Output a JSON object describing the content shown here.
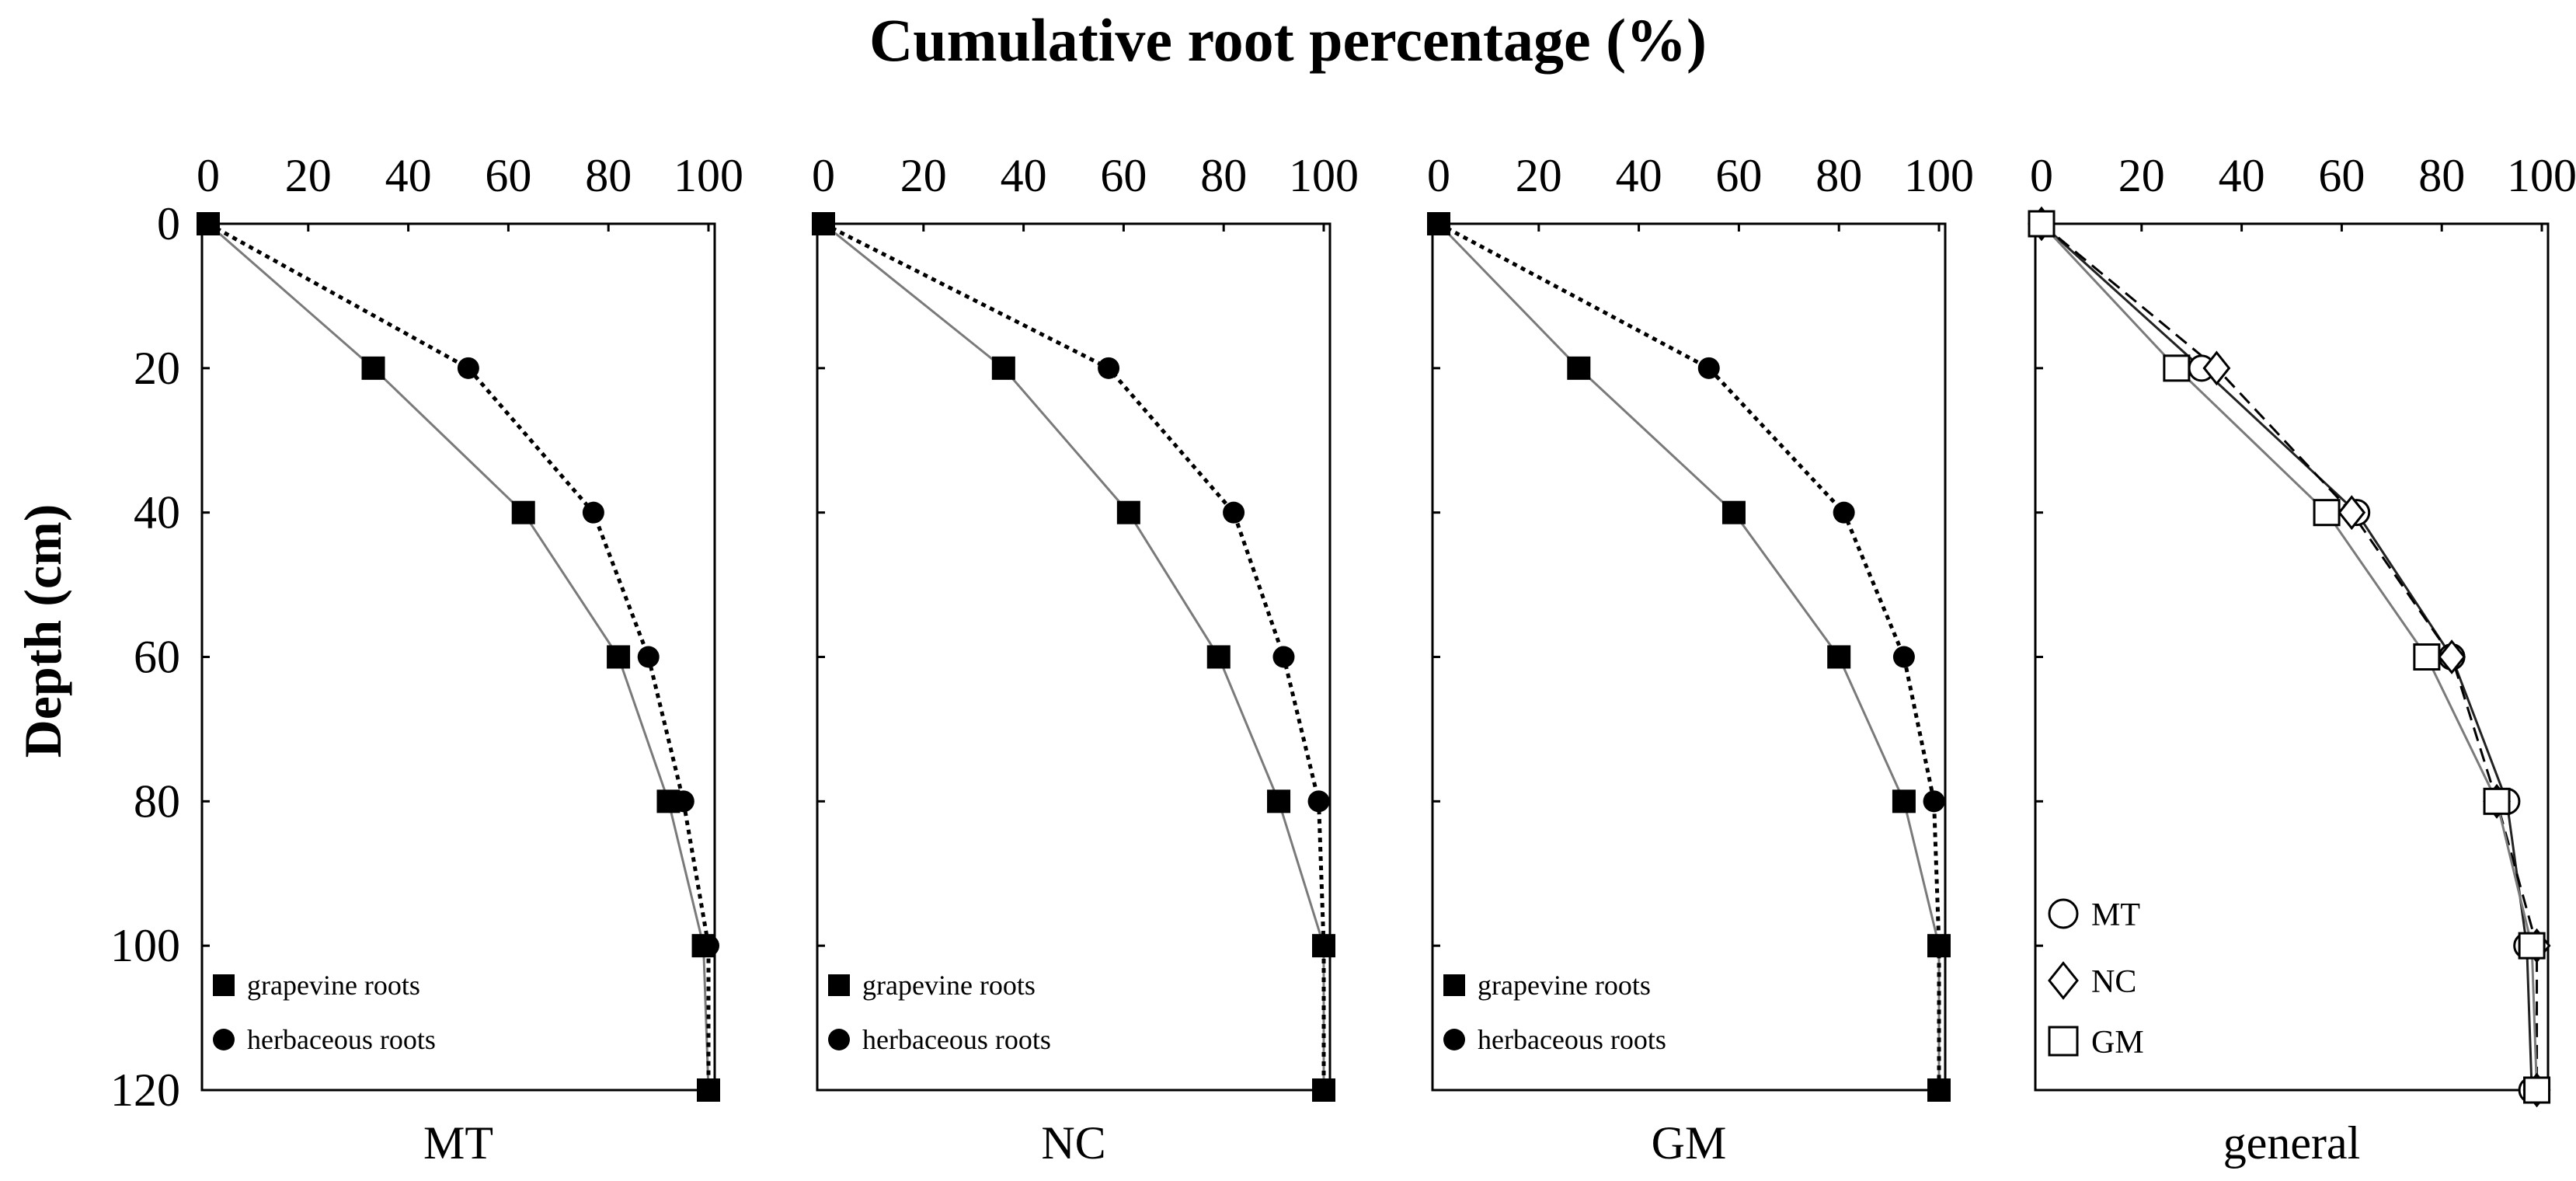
{
  "chart_data": {
    "type": "line",
    "title": "Cumulative root percentage (%)",
    "ylabel": "Depth (cm)",
    "xlim": [
      0,
      100
    ],
    "ylim": [
      0,
      120
    ],
    "x_ticks": [
      "0",
      "20",
      "40",
      "60",
      "80",
      "100"
    ],
    "y_ticks": [
      "0",
      "20",
      "40",
      "60",
      "80",
      "100",
      "120"
    ],
    "y_reversed": true,
    "x_axis_position": "top",
    "depths": [
      0,
      20,
      40,
      60,
      80,
      100,
      120
    ],
    "panels": [
      {
        "label": "MT",
        "legend_position": "bottom-left",
        "series": [
          {
            "name": "grapevine roots",
            "marker": "square-filled",
            "line": "solid-gray",
            "x": [
              0,
              33,
              63,
              82,
              92,
              99,
              100
            ]
          },
          {
            "name": "herbaceous roots",
            "marker": "circle-filled",
            "line": "dotted-black",
            "x": [
              0,
              52,
              77,
              88,
              95,
              100,
              100
            ]
          }
        ]
      },
      {
        "label": "NC",
        "legend_position": "bottom-left",
        "series": [
          {
            "name": "grapevine roots",
            "marker": "square-filled",
            "line": "solid-gray",
            "x": [
              0,
              36,
              61,
              79,
              91,
              100,
              100
            ]
          },
          {
            "name": "herbaceous roots",
            "marker": "circle-filled",
            "line": "dotted-black",
            "x": [
              0,
              57,
              82,
              92,
              99,
              100,
              100
            ]
          }
        ]
      },
      {
        "label": "GM",
        "legend_position": "bottom-left",
        "series": [
          {
            "name": "grapevine roots",
            "marker": "square-filled",
            "line": "solid-gray",
            "x": [
              0,
              28,
              59,
              80,
              93,
              100,
              100
            ]
          },
          {
            "name": "herbaceous roots",
            "marker": "circle-filled",
            "line": "dotted-black",
            "x": [
              0,
              54,
              81,
              93,
              99,
              100,
              100
            ]
          }
        ]
      },
      {
        "label": "general",
        "legend_position": "bottom-left",
        "series": [
          {
            "name": "MT",
            "marker": "circle-open",
            "line": "solid-black",
            "x": [
              0,
              32,
              63,
              82,
              93,
              97,
              98
            ]
          },
          {
            "name": "NC",
            "marker": "diamond-open",
            "line": "dashed-black",
            "x": [
              0,
              35,
              62,
              82,
              91,
              99,
              99
            ]
          },
          {
            "name": "GM",
            "marker": "square-open",
            "line": "solid-gray",
            "x": [
              0,
              27,
              57,
              77,
              91,
              98,
              99
            ]
          }
        ]
      }
    ]
  }
}
